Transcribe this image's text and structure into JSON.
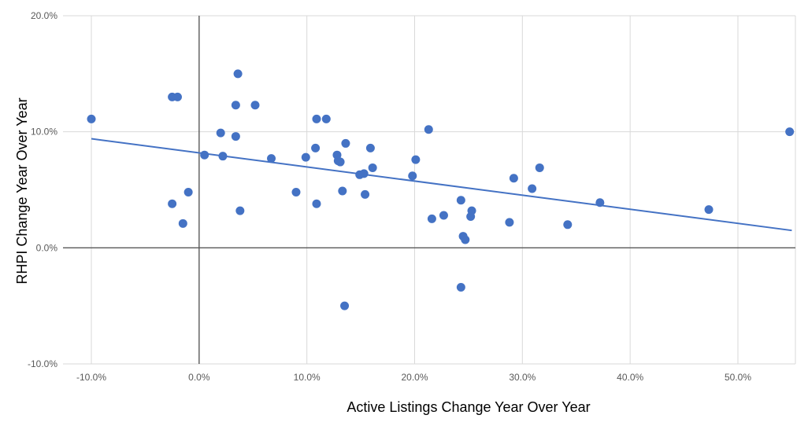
{
  "chart_data": {
    "type": "scatter",
    "title": "",
    "xlabel": "Active Listings Change Year Over Year",
    "ylabel": "RHPI Change Year Over Year",
    "xlim": [
      -0.1,
      0.55
    ],
    "ylim": [
      -0.1,
      0.2
    ],
    "x_ticks": [
      {
        "value": -0.1,
        "label": "-10.0%"
      },
      {
        "value": 0.0,
        "label": "0.0%"
      },
      {
        "value": 0.1,
        "label": "10.0%"
      },
      {
        "value": 0.2,
        "label": "20.0%"
      },
      {
        "value": 0.3,
        "label": "30.0%"
      },
      {
        "value": 0.4,
        "label": "40.0%"
      },
      {
        "value": 0.5,
        "label": "50.0%"
      }
    ],
    "y_ticks": [
      {
        "value": -0.1,
        "label": "-10.0%"
      },
      {
        "value": 0.0,
        "label": "0.0%"
      },
      {
        "value": 0.1,
        "label": "10.0%"
      },
      {
        "value": 0.2,
        "label": "20.0%"
      }
    ],
    "grid": true,
    "legend": "none",
    "colors": {
      "points": "#4472c4",
      "trendline": "#4472c4",
      "grid": "#d9d9d9",
      "zero_axis": "#595959"
    },
    "trendline": {
      "type": "linear",
      "x": [
        -0.1,
        0.55
      ],
      "y": [
        0.094,
        0.015
      ]
    },
    "points": [
      {
        "x": -0.1,
        "y": 0.111
      },
      {
        "x": -0.025,
        "y": 0.13
      },
      {
        "x": -0.02,
        "y": 0.13
      },
      {
        "x": -0.025,
        "y": 0.038
      },
      {
        "x": -0.015,
        "y": 0.021
      },
      {
        "x": -0.01,
        "y": 0.048
      },
      {
        "x": 0.005,
        "y": 0.08
      },
      {
        "x": 0.02,
        "y": 0.099
      },
      {
        "x": 0.022,
        "y": 0.079
      },
      {
        "x": 0.034,
        "y": 0.123
      },
      {
        "x": 0.036,
        "y": 0.15
      },
      {
        "x": 0.034,
        "y": 0.096
      },
      {
        "x": 0.038,
        "y": 0.032
      },
      {
        "x": 0.052,
        "y": 0.123
      },
      {
        "x": 0.067,
        "y": 0.077
      },
      {
        "x": 0.09,
        "y": 0.048
      },
      {
        "x": 0.099,
        "y": 0.078
      },
      {
        "x": 0.108,
        "y": 0.086
      },
      {
        "x": 0.109,
        "y": 0.111
      },
      {
        "x": 0.118,
        "y": 0.111
      },
      {
        "x": 0.109,
        "y": 0.038
      },
      {
        "x": 0.128,
        "y": 0.08
      },
      {
        "x": 0.129,
        "y": 0.075
      },
      {
        "x": 0.131,
        "y": 0.074
      },
      {
        "x": 0.133,
        "y": 0.049
      },
      {
        "x": 0.136,
        "y": 0.09
      },
      {
        "x": 0.135,
        "y": -0.05
      },
      {
        "x": 0.149,
        "y": 0.063
      },
      {
        "x": 0.153,
        "y": 0.064
      },
      {
        "x": 0.154,
        "y": 0.046
      },
      {
        "x": 0.159,
        "y": 0.086
      },
      {
        "x": 0.161,
        "y": 0.069
      },
      {
        "x": 0.198,
        "y": 0.062
      },
      {
        "x": 0.201,
        "y": 0.076
      },
      {
        "x": 0.213,
        "y": 0.102
      },
      {
        "x": 0.216,
        "y": 0.025
      },
      {
        "x": 0.227,
        "y": 0.028
      },
      {
        "x": 0.243,
        "y": 0.041
      },
      {
        "x": 0.243,
        "y": -0.034
      },
      {
        "x": 0.245,
        "y": 0.01
      },
      {
        "x": 0.247,
        "y": 0.007
      },
      {
        "x": 0.252,
        "y": 0.027
      },
      {
        "x": 0.253,
        "y": 0.032
      },
      {
        "x": 0.288,
        "y": 0.022
      },
      {
        "x": 0.292,
        "y": 0.06
      },
      {
        "x": 0.309,
        "y": 0.051
      },
      {
        "x": 0.316,
        "y": 0.069
      },
      {
        "x": 0.342,
        "y": 0.02
      },
      {
        "x": 0.372,
        "y": 0.039
      },
      {
        "x": 0.473,
        "y": 0.033
      },
      {
        "x": 0.548,
        "y": 0.1
      }
    ]
  }
}
